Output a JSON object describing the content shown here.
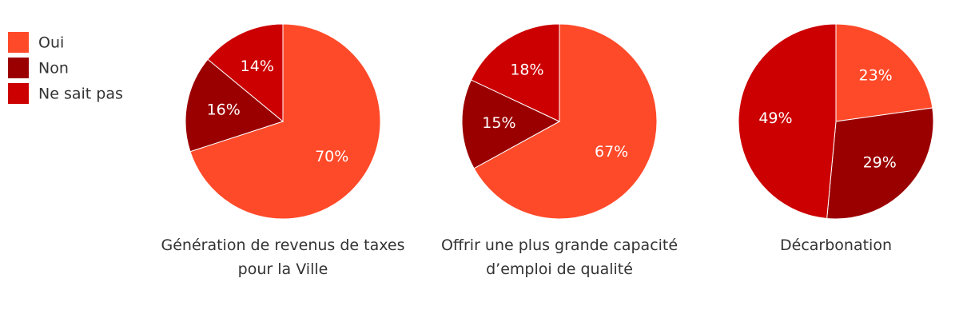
{
  "chart_data": [
    {
      "type": "pie",
      "title": "Génération de revenus de taxes pour la Ville",
      "categories": [
        "Oui",
        "Non",
        "Ne sait pas"
      ],
      "values": [
        70,
        16,
        14
      ],
      "value_labels": [
        "70%",
        "16%",
        "14%"
      ],
      "colors": [
        "#ff4a2a",
        "#9b0000",
        "#cc0000"
      ]
    },
    {
      "type": "pie",
      "title": "Offrir une plus grande capacité d’emploi de qualité",
      "categories": [
        "Oui",
        "Non",
        "Ne sait pas"
      ],
      "values": [
        67,
        15,
        18
      ],
      "value_labels": [
        "67%",
        "15%",
        "18%"
      ],
      "colors": [
        "#ff4a2a",
        "#9b0000",
        "#cc0000"
      ]
    },
    {
      "type": "pie",
      "title": "Décarbonation",
      "categories": [
        "Oui",
        "Non",
        "Ne sait pas"
      ],
      "values": [
        23,
        29,
        49
      ],
      "value_labels": [
        "23%",
        "29%",
        "49%"
      ],
      "colors": [
        "#ff4a2a",
        "#9b0000",
        "#cc0000"
      ]
    }
  ]
}
